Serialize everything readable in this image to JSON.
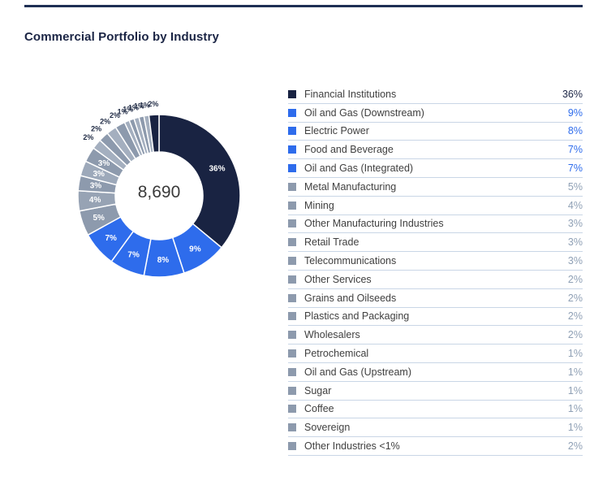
{
  "page": {
    "title": "Commercial Portfolio by Industry"
  },
  "donut": {
    "center_label": "8,690"
  },
  "chart_data": {
    "type": "pie",
    "subtype": "donut",
    "title": "Commercial Portfolio by Industry",
    "center_total": "8,690",
    "unit": "%",
    "legend_position": "right",
    "start_angle_deg": 0,
    "direction": "clockwise",
    "categories": [
      "Financial Institutions",
      "Oil and Gas (Downstream)",
      "Electric Power",
      "Food and Beverage",
      "Oil and Gas (Integrated)",
      "Metal Manufacturing",
      "Mining",
      "Other Manufacturing Industries",
      "Retail Trade",
      "Telecommunications",
      "Other Services",
      "Grains and Oilseeds",
      "Plastics and Packaging",
      "Wholesalers",
      "Petrochemical",
      "Oil and Gas (Upstream)",
      "Sugar",
      "Coffee",
      "Sovereign",
      "Other Industries <1%"
    ],
    "values": [
      36,
      9,
      8,
      7,
      7,
      5,
      4,
      3,
      3,
      3,
      2,
      2,
      2,
      2,
      1,
      1,
      1,
      1,
      1,
      2
    ],
    "labels": [
      "36%",
      "9%",
      "8%",
      "7%",
      "7%",
      "5%",
      "4%",
      "3%",
      "3%",
      "3%",
      "2%",
      "2%",
      "2%",
      "2%",
      "1%",
      "1%",
      "1%",
      "1%",
      "1%",
      "2%"
    ],
    "slice_colors": [
      "#192342",
      "#2E6CEC",
      "#2E6CEC",
      "#2E6CEC",
      "#2E6CEC",
      "#8D9AAD",
      "#97A3B4",
      "#8D9AAD",
      "#9DA9BA",
      "#8D9AAD",
      "#A4AFBF",
      "#8D9AAD",
      "#A4AFBF",
      "#8D9AAD",
      "#A4AFBF",
      "#8D9AAD",
      "#A4AFBF",
      "#8D9AAD",
      "#A4AFBF",
      "#192342"
    ],
    "legend_swatch_colors": [
      "#192342",
      "#2E6CEC",
      "#2E6CEC",
      "#2E6CEC",
      "#2E6CEC",
      "#8D9AAD",
      "#8D9AAD",
      "#8D9AAD",
      "#8D9AAD",
      "#8D9AAD",
      "#8D9AAD",
      "#8D9AAD",
      "#8D9AAD",
      "#8D9AAD",
      "#8D9AAD",
      "#8D9AAD",
      "#8D9AAD",
      "#8D9AAD",
      "#8D9AAD",
      "#8D9AAD"
    ],
    "value_text_colors": [
      "#1B2545",
      "#2E6CEC",
      "#2E6CEC",
      "#2E6CEC",
      "#2E6CEC",
      "#8FA0B5",
      "#8FA0B5",
      "#8FA0B5",
      "#8FA0B5",
      "#8FA0B5",
      "#8FA0B5",
      "#8FA0B5",
      "#8FA0B5",
      "#8FA0B5",
      "#8FA0B5",
      "#8FA0B5",
      "#8FA0B5",
      "#8FA0B5",
      "#8FA0B5",
      "#8FA0B5"
    ]
  },
  "colors": {
    "accent_navy": "#1B2545",
    "accent_blue": "#2E6CEC",
    "accent_gray": "#8D9AAD",
    "rule": "#1E2F54",
    "row_divider": "#C9D6E6"
  }
}
